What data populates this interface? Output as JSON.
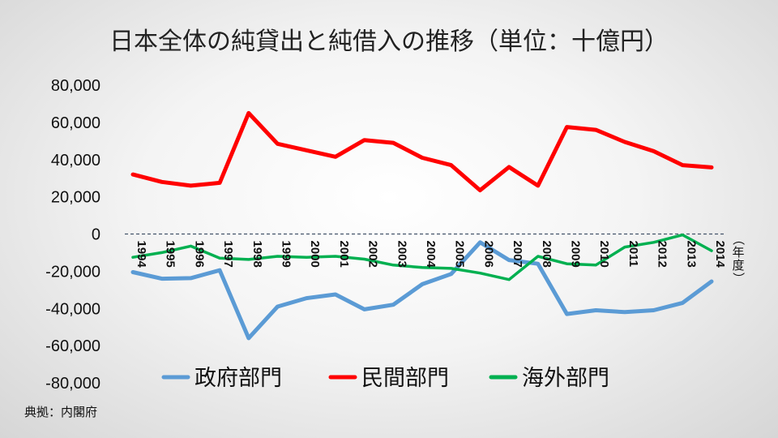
{
  "chart_data": {
    "type": "line",
    "title": "日本全体の純貸出と純借入の推移（単位：十億円）",
    "x": [
      "1994",
      "1995",
      "1996",
      "1997",
      "1998",
      "1999",
      "2000",
      "2001",
      "2002",
      "2003",
      "2004",
      "2005",
      "2006",
      "2007",
      "2008",
      "2009",
      "2010",
      "2011",
      "2012",
      "2013",
      "2014"
    ],
    "x_unit_label": "（年度）",
    "ylim": [
      -80000,
      80000
    ],
    "yticks": [
      80000,
      60000,
      40000,
      20000,
      0,
      -20000,
      -40000,
      -60000,
      -80000
    ],
    "ytick_labels": [
      "80,000",
      "60,000",
      "40,000",
      "20,000",
      "0",
      "-20,000",
      "-40,000",
      "-60,000",
      "-80,000"
    ],
    "zero_line": "dashed",
    "grid": false,
    "legend_position": "bottom",
    "series": [
      {
        "name": "政府部門",
        "color": "#5b9bd5",
        "values": [
          -20500,
          -24000,
          -23700,
          -19500,
          -56000,
          -39000,
          -34500,
          -32500,
          -40500,
          -38000,
          -27000,
          -21500,
          -4500,
          -14000,
          -16000,
          -43000,
          -41000,
          -42000,
          -41000,
          -37000,
          -25500
        ]
      },
      {
        "name": "民間部門",
        "color": "#ff0000",
        "values": [
          32000,
          28000,
          26000,
          27500,
          65000,
          48500,
          45000,
          41500,
          50500,
          49000,
          41000,
          37000,
          23500,
          36000,
          26000,
          57500,
          56000,
          49500,
          44500,
          37000,
          35800
        ]
      },
      {
        "name": "海外部門",
        "color": "#00b050",
        "values": [
          -12500,
          -10000,
          -6500,
          -13000,
          -13700,
          -12000,
          -12500,
          -12000,
          -13500,
          -16700,
          -18000,
          -18500,
          -21000,
          -24500,
          -12000,
          -16000,
          -16700,
          -7000,
          -4500,
          -500,
          -9000
        ]
      }
    ]
  },
  "source": "典拠：内閣府"
}
